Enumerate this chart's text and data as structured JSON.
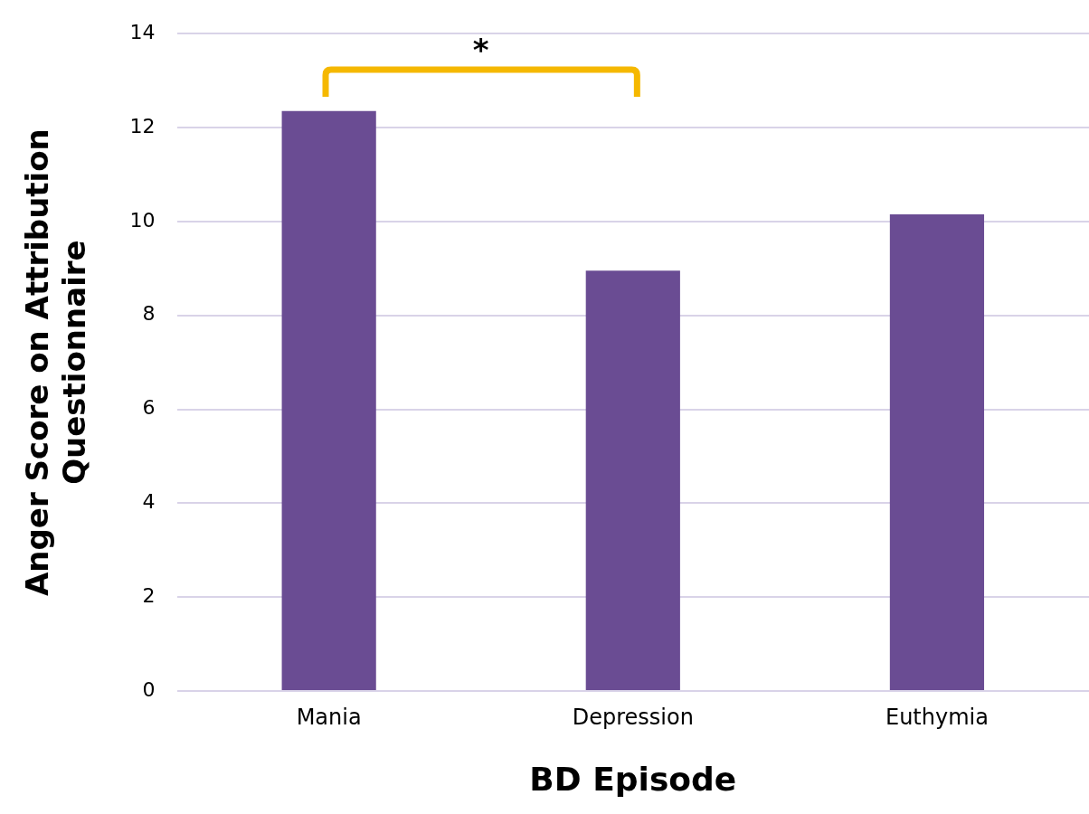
{
  "chart_data": {
    "type": "bar",
    "xlabel": "BD Episode",
    "ylabel": "Anger Score on Attribution Questionnaire",
    "categories": [
      "Mania",
      "Depression",
      "Euthymia"
    ],
    "values": [
      12.35,
      8.95,
      10.15
    ],
    "color": "#6a4c93",
    "ylim": [
      0,
      14
    ],
    "yticks": [
      0,
      2,
      4,
      6,
      8,
      10,
      12,
      14
    ],
    "grid": "y",
    "legend": false,
    "annotations": [
      "*"
    ]
  }
}
